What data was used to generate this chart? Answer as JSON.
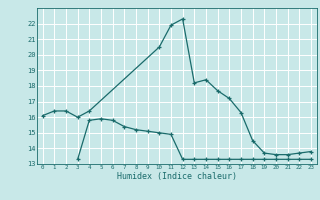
{
  "title": "",
  "xlabel": "Humidex (Indice chaleur)",
  "background_color": "#c8e8e8",
  "grid_color": "#ffffff",
  "line_color": "#1a6b6b",
  "ylim": [
    13,
    23
  ],
  "xlim": [
    -0.5,
    23.5
  ],
  "yticks": [
    13,
    14,
    15,
    16,
    17,
    18,
    19,
    20,
    21,
    22
  ],
  "xticks": [
    0,
    1,
    2,
    3,
    4,
    5,
    6,
    7,
    8,
    9,
    10,
    11,
    12,
    13,
    14,
    15,
    16,
    17,
    18,
    19,
    20,
    21,
    22,
    23
  ],
  "line1_x": [
    0,
    1,
    2,
    3,
    4,
    10,
    11,
    12,
    13,
    14,
    15,
    16,
    17,
    18,
    19,
    20,
    21,
    22,
    23
  ],
  "line1_y": [
    16.1,
    16.4,
    16.4,
    16.0,
    16.4,
    20.5,
    21.9,
    22.3,
    18.2,
    18.4,
    17.7,
    17.2,
    16.3,
    14.5,
    13.7,
    13.6,
    13.6,
    13.7,
    13.8
  ],
  "line2_x": [
    3,
    4,
    5,
    6,
    7,
    8,
    9,
    10,
    11,
    12,
    13,
    14,
    15,
    16,
    17,
    18,
    19,
    20,
    21,
    22,
    23
  ],
  "line2_y": [
    13.3,
    15.8,
    15.9,
    15.8,
    15.4,
    15.2,
    15.1,
    15.0,
    14.9,
    13.3,
    13.3,
    13.3,
    13.3,
    13.3,
    13.3,
    13.3,
    13.3,
    13.3,
    13.3,
    13.3,
    13.3
  ]
}
